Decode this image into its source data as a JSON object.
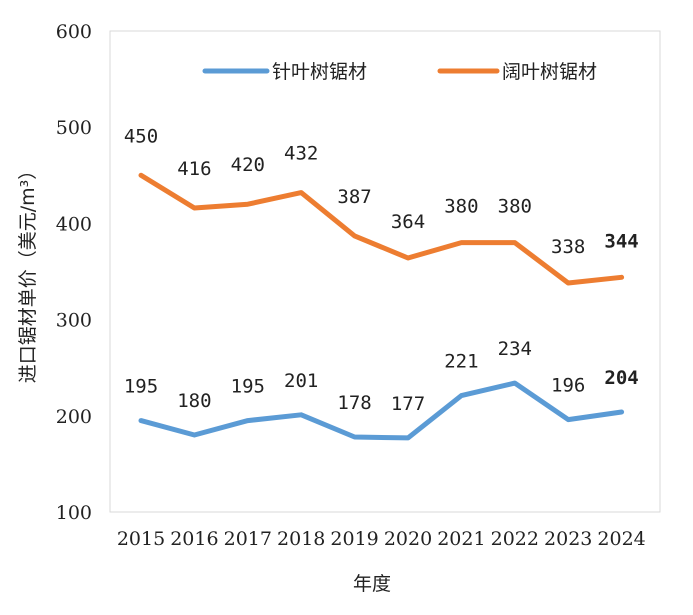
{
  "chart_data": {
    "type": "line",
    "title": "",
    "xlabel": "年度",
    "ylabel": "进口锯材单价（美元/m³）",
    "categories": [
      "2015",
      "2016",
      "2017",
      "2018",
      "2019",
      "2020",
      "2021",
      "2022",
      "2023",
      "2024"
    ],
    "yticks": [
      "600",
      "500",
      "400",
      "300",
      "200",
      "100"
    ],
    "ylim": [
      100,
      600
    ],
    "grid": false,
    "legend_position": "top",
    "series": [
      {
        "name": "针叶树锯材",
        "color": "#5b9bd5",
        "values": [
          195,
          180,
          195,
          201,
          178,
          177,
          221,
          234,
          196,
          204
        ],
        "labels": [
          "195",
          "180",
          "195",
          "201",
          "178",
          "177",
          "221",
          "234",
          "196",
          "204"
        ]
      },
      {
        "name": "阔叶树锯材",
        "color": "#ed7d31",
        "values": [
          450,
          416,
          420,
          432,
          387,
          364,
          380,
          380,
          338,
          344
        ],
        "labels": [
          "450",
          "416",
          "420",
          "432",
          "387",
          "364",
          "380",
          "380",
          "338",
          "344"
        ]
      }
    ]
  }
}
